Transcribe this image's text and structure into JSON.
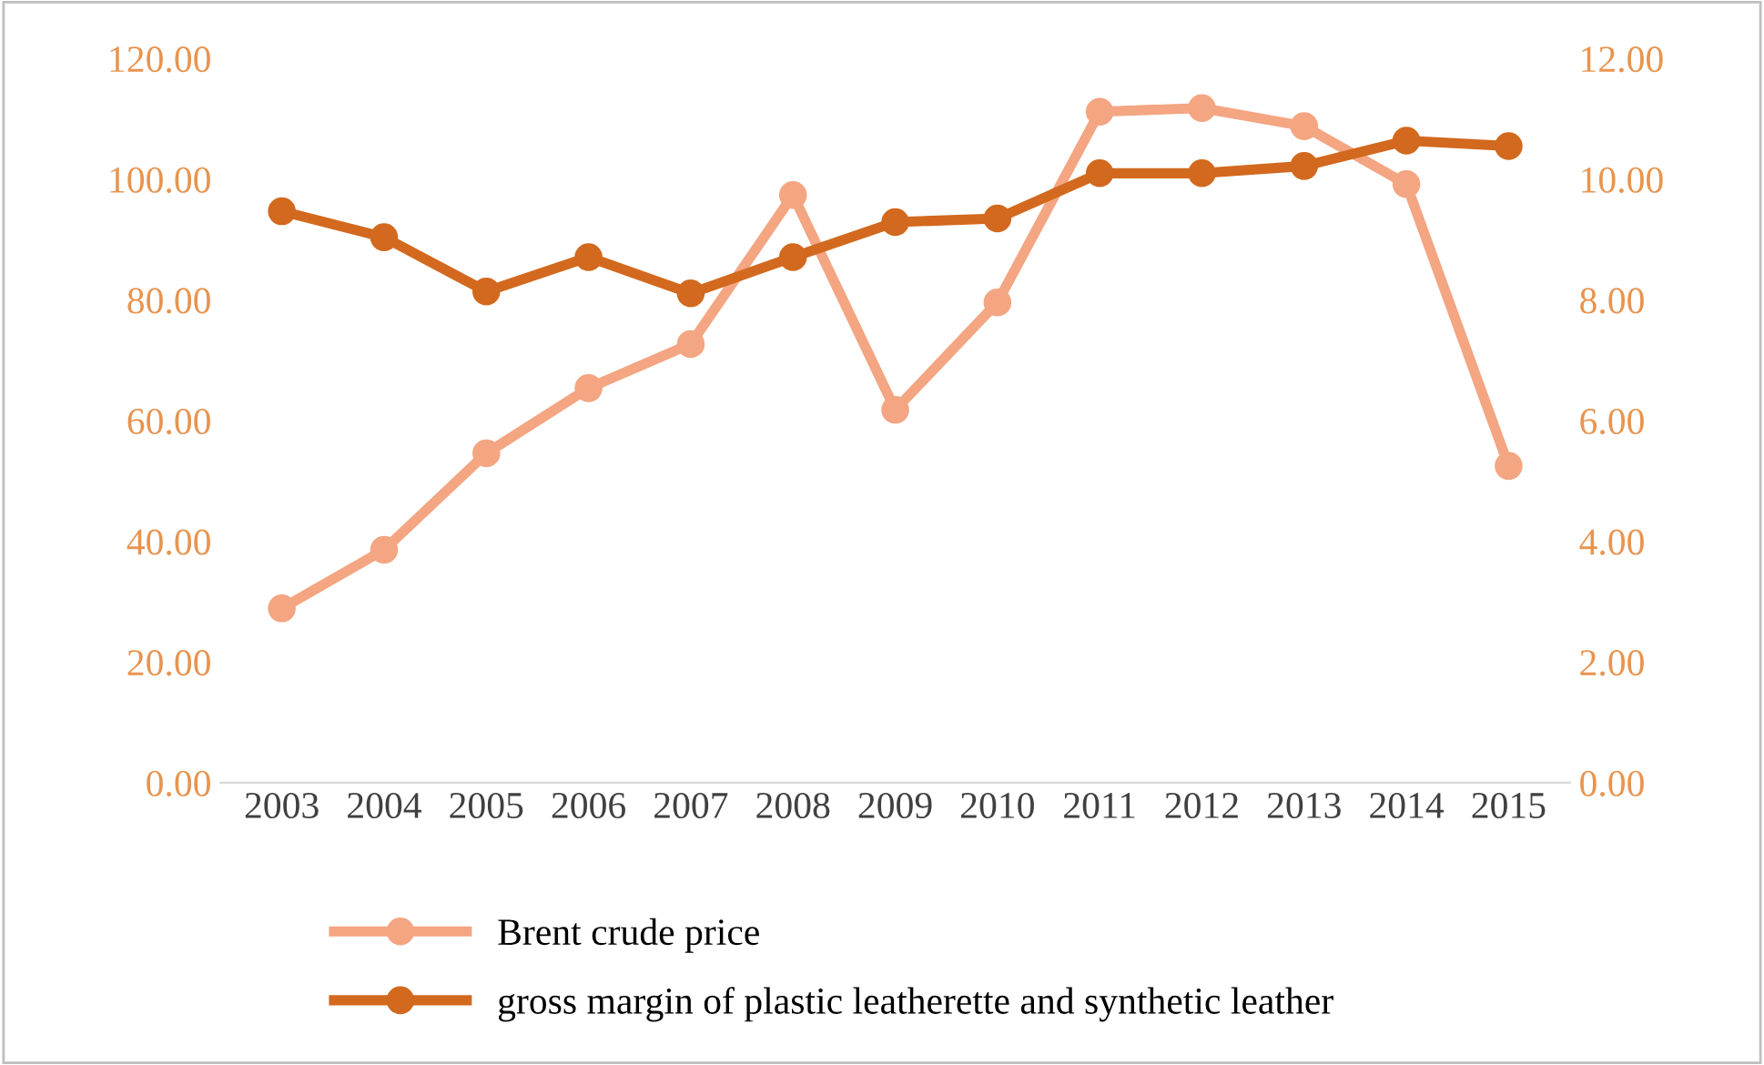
{
  "chart_data": {
    "type": "line",
    "categories": [
      "2003",
      "2004",
      "2005",
      "2006",
      "2007",
      "2008",
      "2009",
      "2010",
      "2011",
      "2012",
      "2013",
      "2014",
      "2015"
    ],
    "series": [
      {
        "name": "Brent crude price",
        "color": "#f4a582",
        "values": [
          28.9,
          38.6,
          54.6,
          65.4,
          72.7,
          97.4,
          61.8,
          79.6,
          111.2,
          111.8,
          108.8,
          99.2,
          52.5
        ]
      },
      {
        "name": "gross margin of plastic leatherette and synthetic leather",
        "color": "#d2691e",
        "axis": "y2",
        "values": [
          9.47,
          9.04,
          8.14,
          8.71,
          8.11,
          8.71,
          9.29,
          9.35,
          10.1,
          10.1,
          10.22,
          10.64,
          10.55
        ]
      }
    ],
    "ylim": [
      0,
      120
    ],
    "yticks": [
      {
        "value": 0,
        "label": "0.00"
      },
      {
        "value": 20,
        "label": "20.00"
      },
      {
        "value": 40,
        "label": "40.00"
      },
      {
        "value": 60,
        "label": "60.00"
      },
      {
        "value": 80,
        "label": "80.00"
      },
      {
        "value": 100,
        "label": "100.00"
      },
      {
        "value": 120,
        "label": "120.00"
      }
    ],
    "y2lim": [
      0,
      12
    ],
    "y2ticks": [
      {
        "value": 0,
        "label": "0.00"
      },
      {
        "value": 2,
        "label": "2.00"
      },
      {
        "value": 4,
        "label": "4.00"
      },
      {
        "value": 6,
        "label": "6.00"
      },
      {
        "value": 8,
        "label": "8.00"
      },
      {
        "value": 10,
        "label": "10.00"
      },
      {
        "value": 12,
        "label": "12.00"
      }
    ],
    "marker": "circle",
    "line_style": "solid",
    "grid": false,
    "legend": "bottom"
  }
}
